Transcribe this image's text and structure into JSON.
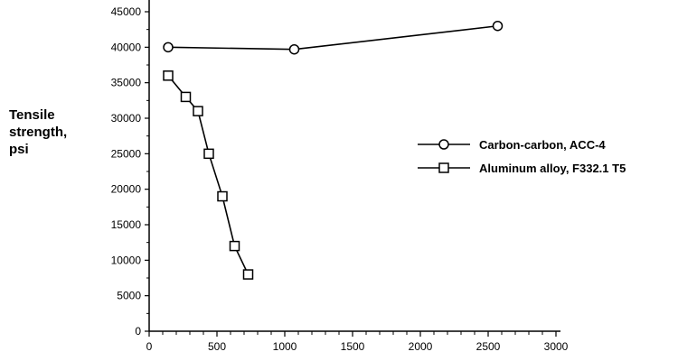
{
  "chart_data": {
    "type": "line",
    "ylabel_lines": [
      "Tensile",
      "strength,",
      "psi"
    ],
    "xlim": [
      0,
      3000
    ],
    "ylim": [
      0,
      45000
    ],
    "x_ticks": [
      0,
      500,
      1000,
      1500,
      2000,
      2500,
      3000
    ],
    "y_ticks": [
      0,
      5000,
      10000,
      15000,
      20000,
      25000,
      30000,
      35000,
      40000,
      45000
    ],
    "grid": false,
    "legend_position": "right",
    "series": [
      {
        "name": "Carbon-carbon, ACC-4",
        "marker": "circle",
        "x": [
          140,
          1070,
          2570
        ],
        "y": [
          40000,
          39700,
          43000
        ]
      },
      {
        "name": "Aluminum alloy, F332.1 T5",
        "marker": "square",
        "x": [
          140,
          270,
          360,
          440,
          540,
          630,
          730
        ],
        "y": [
          36000,
          33000,
          31000,
          25000,
          19000,
          12000,
          8000
        ]
      }
    ]
  }
}
